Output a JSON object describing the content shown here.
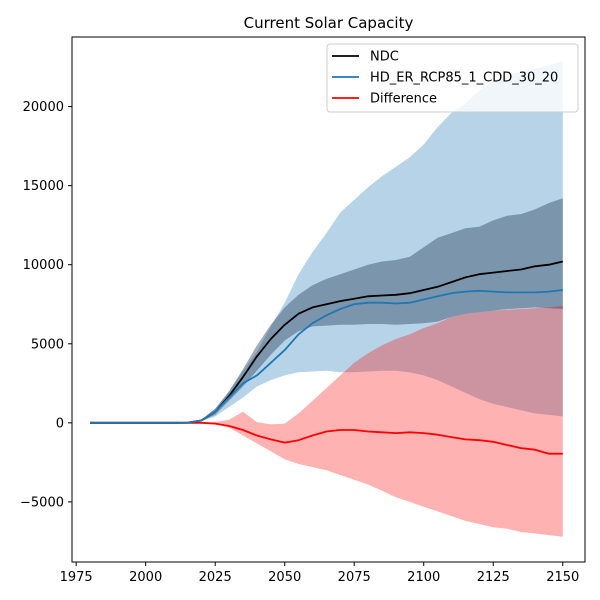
{
  "chart_data": {
    "type": "line",
    "title": "Current Solar Capacity",
    "xlabel": "",
    "ylabel": "",
    "xlim": [
      1973.5,
      2158
    ],
    "ylim": [
      -8800,
      24400
    ],
    "xticks": [
      1975,
      2000,
      2025,
      2050,
      2075,
      2100,
      2125,
      2150
    ],
    "yticks": [
      -5000,
      0,
      5000,
      10000,
      15000,
      20000
    ],
    "grid": false,
    "legend_position": "top-right",
    "x": [
      1980,
      2000,
      2010,
      2015,
      2020,
      2025,
      2030,
      2035,
      2040,
      2045,
      2050,
      2055,
      2060,
      2065,
      2070,
      2075,
      2080,
      2085,
      2090,
      2095,
      2100,
      2105,
      2110,
      2115,
      2120,
      2125,
      2130,
      2135,
      2140,
      2145,
      2150
    ],
    "series": [
      {
        "name": "NDC",
        "color": "#000000",
        "values": [
          0,
          0,
          0,
          10,
          150,
          700,
          1700,
          2900,
          4200,
          5300,
          6200,
          6900,
          7300,
          7500,
          7700,
          7850,
          8000,
          8050,
          8100,
          8200,
          8400,
          8600,
          8900,
          9200,
          9400,
          9500,
          9600,
          9700,
          9900,
          10000,
          10200
        ],
        "band_lower": [
          0,
          0,
          0,
          5,
          100,
          500,
          1400,
          2300,
          3300,
          4300,
          5200,
          5800,
          6100,
          6150,
          6200,
          6200,
          6250,
          6250,
          6200,
          6250,
          6300,
          6400,
          6700,
          6900,
          7000,
          7100,
          7200,
          7250,
          7300,
          7250,
          7200
        ],
        "band_upper": [
          0,
          0,
          0,
          20,
          200,
          900,
          2000,
          3400,
          4900,
          6200,
          7300,
          8100,
          8700,
          9100,
          9400,
          9700,
          10000,
          10200,
          10300,
          10500,
          11100,
          11700,
          12000,
          12300,
          12400,
          12800,
          13100,
          13200,
          13500,
          13900,
          14200
        ],
        "band_color": "rgba(52,75,100,0.45)"
      },
      {
        "name": "HD_ER_RCP85_1_CDD_30_20",
        "color": "#1f77b4",
        "values": [
          0,
          0,
          0,
          10,
          150,
          700,
          1600,
          2500,
          3000,
          3800,
          4600,
          5600,
          6300,
          6800,
          7200,
          7500,
          7600,
          7600,
          7550,
          7600,
          7800,
          8000,
          8200,
          8300,
          8350,
          8300,
          8250,
          8250,
          8250,
          8300,
          8400
        ],
        "band_lower": [
          0,
          0,
          0,
          0,
          100,
          400,
          1000,
          1600,
          2300,
          2700,
          3000,
          3200,
          3250,
          3300,
          3200,
          3200,
          3250,
          3300,
          3300,
          3200,
          3000,
          2700,
          2300,
          1900,
          1500,
          1200,
          1000,
          800,
          600,
          500,
          400
        ],
        "band_upper": [
          0,
          0,
          0,
          20,
          200,
          900,
          2000,
          3300,
          4500,
          6100,
          7600,
          9400,
          10800,
          12000,
          13300,
          14100,
          14900,
          15600,
          16200,
          16800,
          17600,
          18700,
          19600,
          20200,
          21000,
          21600,
          22000,
          22200,
          22400,
          22600,
          22900
        ],
        "band_color": "rgba(31,119,180,0.32)"
      },
      {
        "name": "Difference",
        "color": "#ff0000",
        "values": [
          0,
          0,
          0,
          0,
          0,
          -50,
          -200,
          -450,
          -800,
          -1050,
          -1250,
          -1100,
          -800,
          -550,
          -450,
          -450,
          -550,
          -600,
          -650,
          -600,
          -650,
          -750,
          -900,
          -1050,
          -1100,
          -1200,
          -1400,
          -1600,
          -1700,
          -1950,
          -1950
        ],
        "band_lower": [
          0,
          0,
          0,
          -10,
          -20,
          -80,
          -300,
          -800,
          -1300,
          -1800,
          -2300,
          -2600,
          -2800,
          -3000,
          -3300,
          -3600,
          -3900,
          -4300,
          -4700,
          -5000,
          -5300,
          -5600,
          -5900,
          -6200,
          -6400,
          -6600,
          -6700,
          -6900,
          -7000,
          -7100,
          -7200
        ],
        "band_upper": [
          0,
          0,
          0,
          10,
          20,
          50,
          200,
          700,
          50,
          -100,
          -50,
          600,
          1400,
          2200,
          3000,
          3800,
          4400,
          4900,
          5300,
          5600,
          6000,
          6300,
          6700,
          6900,
          7000,
          7100,
          7150,
          7200,
          7250,
          7300,
          7400
        ],
        "band_color": "rgba(255,0,0,0.30)"
      }
    ]
  }
}
